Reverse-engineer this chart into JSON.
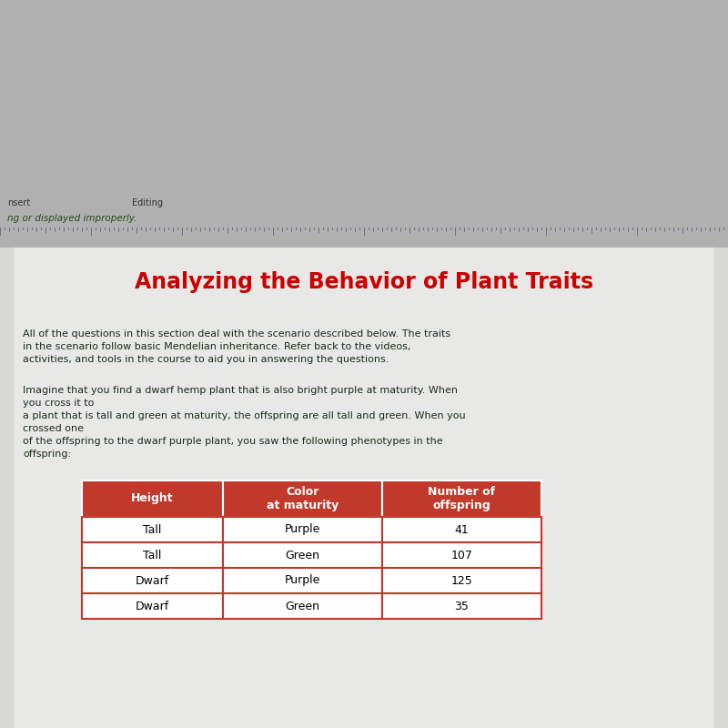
{
  "title": "Analyzing the Behavior of Plant Traits",
  "title_color": "#cc0000",
  "title_fontsize": 18,
  "paragraph1": "All of the questions in this section deal with the scenario described below. The traits\nin the scenario follow basic Mendelian inheritance. Refer back to the videos,\nactivities, and tools in the course to aid you in answering the questions.",
  "paragraph2": "Imagine that you find a dwarf hemp plant that is also bright purple at maturity. When\nyou cross it to\na plant that is tall and green at maturity, the offspring are all tall and green. When you\ncrossed one\nof the offspring to the dwarf purple plant, you saw the following phenotypes in the\noffspring:",
  "table_headers": [
    "Height",
    "Color\nat maturity",
    "Number of\noffspring"
  ],
  "table_rows": [
    [
      "Tall",
      "Purple",
      "41"
    ],
    [
      "Tall",
      "Green",
      "107"
    ],
    [
      "Dwarf",
      "Purple",
      "125"
    ],
    [
      "Dwarf",
      "Green",
      "35"
    ]
  ],
  "header_bg_color": "#c0392b",
  "header_text_color": "#ffffff",
  "row_bg_color": "#ffffff",
  "row_text_color": "#000000",
  "table_border_color": "#c0392b",
  "body_text_color": "#1a2e1a",
  "bg_color": "#b0b0b0",
  "top_bg_color": "#000000",
  "toolbar_bg_color": "#c8c4a0",
  "yellow_bar_color": "#d4cc6a",
  "ruler_bg_color": "#b8c8d8",
  "page_bg_color": "#d0d0cc",
  "insert_text": "nsert",
  "editing_text": "Editing",
  "warning_text": "ng or displayed improperly."
}
